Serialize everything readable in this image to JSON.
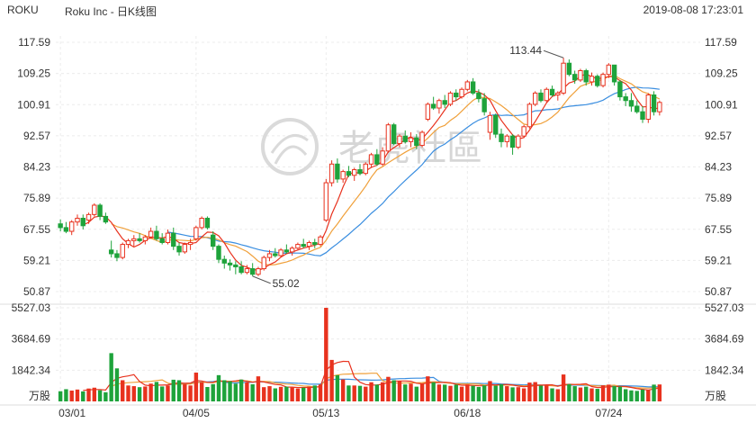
{
  "header": {
    "ticker": "ROKU",
    "title": "Roku Inc - 日K线图",
    "timestamp": "2019-08-08 17:23:01"
  },
  "watermark": "老虎社區",
  "colors": {
    "up": "#e8321e",
    "down": "#1ea33b",
    "ma5": "#e8321e",
    "ma10": "#f0a03a",
    "ma20": "#3a8ee0"
  },
  "chart_data": {
    "type": "candlestick",
    "price_ticks": [
      "117.59",
      "109.25",
      "100.91",
      "92.57",
      "84.23",
      "75.89",
      "67.55",
      "59.21",
      "50.87"
    ],
    "price_range": [
      50.87,
      117.59
    ],
    "volume_ticks": [
      "5527.03",
      "3684.69",
      "1842.34"
    ],
    "volume_unit": "万股",
    "volume_range": [
      0,
      5527.03
    ],
    "x_labels": [
      "03/01",
      "04/05",
      "05/13",
      "06/18",
      "07/24"
    ],
    "annotations": {
      "high": "113.44",
      "low": "55.02"
    },
    "ohlc": [
      [
        69.0,
        70.2,
        67.0,
        68.0
      ],
      [
        68.0,
        69.5,
        66.5,
        67.0
      ],
      [
        67.0,
        70.0,
        66.0,
        69.5
      ],
      [
        69.5,
        71.5,
        68.5,
        70.5
      ],
      [
        70.5,
        71.5,
        67.5,
        68.5
      ],
      [
        70.0,
        72.0,
        69.0,
        71.5
      ],
      [
        71.5,
        74.5,
        71.0,
        74.0
      ],
      [
        74.0,
        74.5,
        70.0,
        71.0
      ],
      [
        71.0,
        72.0,
        69.0,
        69.5
      ],
      [
        62.0,
        64.5,
        60.0,
        61.0
      ],
      [
        61.0,
        62.0,
        59.0,
        60.0
      ],
      [
        60.0,
        64.0,
        59.5,
        63.5
      ],
      [
        63.5,
        65.0,
        62.5,
        64.5
      ],
      [
        64.5,
        66.0,
        63.0,
        65.0
      ],
      [
        65.0,
        66.5,
        64.0,
        64.5
      ],
      [
        64.5,
        66.0,
        63.5,
        65.5
      ],
      [
        65.5,
        68.0,
        65.0,
        67.0
      ],
      [
        67.0,
        68.5,
        64.5,
        65.0
      ],
      [
        65.0,
        66.5,
        63.5,
        64.0
      ],
      [
        64.0,
        67.5,
        63.5,
        66.5
      ],
      [
        66.5,
        68.0,
        62.0,
        63.0
      ],
      [
        63.0,
        64.0,
        60.5,
        61.5
      ],
      [
        61.5,
        64.0,
        61.0,
        63.5
      ],
      [
        63.5,
        65.0,
        62.0,
        64.0
      ],
      [
        65.0,
        68.5,
        64.5,
        68.0
      ],
      [
        68.0,
        71.0,
        67.5,
        70.5
      ],
      [
        70.5,
        71.0,
        67.5,
        68.0
      ],
      [
        66.0,
        67.0,
        62.0,
        63.0
      ],
      [
        63.0,
        63.5,
        58.5,
        59.5
      ],
      [
        59.5,
        60.5,
        57.0,
        58.5
      ],
      [
        58.5,
        59.5,
        56.5,
        58.0
      ],
      [
        58.0,
        59.0,
        55.5,
        57.5
      ],
      [
        57.5,
        59.0,
        55.5,
        56.0
      ],
      [
        56.0,
        58.0,
        55.5,
        57.0
      ],
      [
        57.0,
        58.5,
        55.0,
        55.5
      ],
      [
        55.5,
        57.5,
        55.02,
        57.0
      ],
      [
        57.0,
        60.5,
        56.5,
        60.0
      ],
      [
        60.0,
        62.0,
        59.0,
        61.0
      ],
      [
        61.0,
        62.5,
        60.0,
        60.5
      ],
      [
        60.5,
        62.5,
        60.0,
        62.0
      ],
      [
        62.0,
        63.5,
        61.0,
        61.5
      ],
      [
        61.5,
        63.0,
        60.5,
        62.5
      ],
      [
        62.5,
        64.0,
        62.0,
        63.5
      ],
      [
        63.5,
        65.0,
        62.5,
        63.0
      ],
      [
        63.0,
        64.5,
        62.0,
        64.0
      ],
      [
        64.0,
        65.0,
        62.5,
        63.5
      ],
      [
        63.5,
        66.0,
        63.0,
        65.5
      ],
      [
        70.0,
        81.0,
        69.5,
        80.0
      ],
      [
        80.0,
        86.0,
        79.0,
        85.0
      ],
      [
        85.0,
        86.5,
        80.0,
        81.0
      ],
      [
        81.0,
        83.5,
        80.0,
        83.0
      ],
      [
        83.0,
        84.5,
        81.5,
        82.0
      ],
      [
        82.0,
        84.0,
        80.5,
        83.5
      ],
      [
        83.5,
        85.0,
        82.0,
        82.5
      ],
      [
        82.5,
        85.5,
        82.0,
        85.0
      ],
      [
        85.0,
        88.0,
        84.0,
        87.5
      ],
      [
        87.5,
        89.0,
        84.5,
        85.0
      ],
      [
        85.0,
        89.5,
        84.5,
        88.5
      ],
      [
        88.5,
        96.0,
        88.0,
        95.5
      ],
      [
        95.5,
        96.0,
        90.0,
        90.5
      ],
      [
        90.5,
        93.0,
        89.5,
        92.5
      ],
      [
        92.5,
        94.0,
        90.5,
        91.0
      ],
      [
        91.0,
        93.5,
        89.5,
        92.0
      ],
      [
        92.0,
        93.0,
        89.0,
        90.0
      ],
      [
        90.0,
        94.0,
        89.5,
        93.5
      ],
      [
        97.0,
        101.5,
        96.5,
        101.0
      ],
      [
        101.0,
        103.0,
        99.5,
        100.0
      ],
      [
        100.0,
        102.5,
        98.5,
        102.0
      ],
      [
        102.0,
        103.5,
        100.0,
        101.0
      ],
      [
        101.0,
        104.5,
        100.5,
        104.0
      ],
      [
        104.0,
        105.0,
        102.0,
        103.0
      ],
      [
        103.0,
        105.5,
        102.5,
        105.0
      ],
      [
        105.0,
        107.5,
        104.5,
        107.0
      ],
      [
        107.0,
        108.0,
        103.5,
        104.0
      ],
      [
        104.0,
        105.0,
        101.5,
        102.5
      ],
      [
        102.5,
        104.0,
        98.0,
        99.0
      ],
      [
        93.5,
        99.0,
        91.5,
        98.0
      ],
      [
        98.0,
        98.5,
        92.0,
        93.0
      ],
      [
        93.0,
        94.5,
        89.5,
        91.0
      ],
      [
        91.0,
        93.0,
        89.5,
        92.5
      ],
      [
        92.5,
        93.0,
        87.5,
        89.5
      ],
      [
        89.5,
        93.0,
        89.0,
        92.5
      ],
      [
        92.5,
        95.5,
        92.0,
        95.0
      ],
      [
        95.0,
        101.5,
        94.5,
        101.0
      ],
      [
        101.0,
        104.5,
        100.5,
        104.0
      ],
      [
        104.0,
        105.0,
        101.5,
        102.0
      ],
      [
        102.0,
        105.5,
        101.5,
        105.0
      ],
      [
        105.0,
        106.0,
        103.0,
        103.5
      ],
      [
        103.5,
        104.5,
        102.0,
        104.0
      ],
      [
        104.0,
        113.44,
        103.5,
        112.0
      ],
      [
        112.0,
        113.0,
        108.5,
        109.0
      ],
      [
        109.0,
        110.0,
        106.5,
        107.5
      ],
      [
        107.5,
        110.5,
        107.0,
        110.0
      ],
      [
        110.0,
        110.5,
        106.0,
        107.0
      ],
      [
        107.0,
        109.5,
        106.0,
        108.5
      ],
      [
        108.5,
        109.0,
        105.5,
        106.0
      ],
      [
        106.0,
        109.5,
        105.5,
        109.0
      ],
      [
        109.0,
        112.0,
        108.0,
        111.5
      ],
      [
        111.5,
        111.5,
        106.0,
        107.0
      ],
      [
        107.0,
        107.5,
        102.0,
        103.0
      ],
      [
        103.0,
        104.0,
        100.5,
        102.0
      ],
      [
        102.0,
        104.0,
        99.0,
        100.5
      ],
      [
        100.5,
        102.0,
        98.5,
        99.0
      ],
      [
        99.0,
        100.5,
        96.0,
        97.0
      ],
      [
        97.0,
        104.0,
        96.0,
        103.5
      ],
      [
        103.5,
        104.5,
        98.0,
        99.0
      ],
      [
        99.0,
        102.0,
        98.0,
        101.5
      ]
    ],
    "volume": [
      600,
      720,
      640,
      700,
      590,
      760,
      810,
      660,
      540,
      2850,
      1950,
      1250,
      940,
      900,
      840,
      880,
      1050,
      1150,
      880,
      940,
      1280,
      1250,
      1020,
      940,
      1700,
      1130,
      850,
      1020,
      1550,
      1250,
      1190,
      1050,
      1290,
      1130,
      1010,
      1480,
      840,
      900,
      770,
      860,
      870,
      820,
      760,
      810,
      870,
      940,
      1000,
      5527,
      2450,
      1550,
      1300,
      940,
      940,
      920,
      870,
      1130,
      990,
      1130,
      1450,
      1250,
      1200,
      1000,
      1050,
      870,
      1050,
      1480,
      1130,
      1000,
      990,
      920,
      990,
      870,
      1000,
      920,
      850,
      950,
      1200,
      930,
      1010,
      900,
      830,
      840,
      770,
      1110,
      1140,
      930,
      940,
      770,
      720,
      1590,
      1020,
      900,
      820,
      870,
      770,
      740,
      950,
      990,
      900,
      870,
      720,
      650,
      620,
      700,
      690,
      990,
      1000
    ],
    "ma5": [],
    "ma10": [],
    "ma20": []
  }
}
